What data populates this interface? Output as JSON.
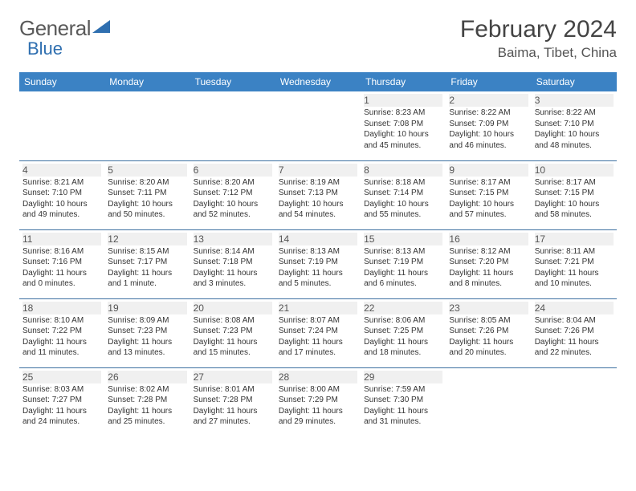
{
  "logo": {
    "text_a": "General",
    "text_b": "Blue",
    "color_a": "#5a5a5a",
    "color_b": "#2f6fb0"
  },
  "title": "February 2024",
  "location": "Baima, Tibet, China",
  "header_bg": "#3b82c4",
  "border_color": "#3b6fa0",
  "day_bg": "#f0f0f0",
  "weekdays": [
    "Sunday",
    "Monday",
    "Tuesday",
    "Wednesday",
    "Thursday",
    "Friday",
    "Saturday"
  ],
  "weeks": [
    [
      null,
      null,
      null,
      null,
      {
        "n": "1",
        "sr": "Sunrise: 8:23 AM",
        "ss": "Sunset: 7:08 PM",
        "dl": "Daylight: 10 hours and 45 minutes."
      },
      {
        "n": "2",
        "sr": "Sunrise: 8:22 AM",
        "ss": "Sunset: 7:09 PM",
        "dl": "Daylight: 10 hours and 46 minutes."
      },
      {
        "n": "3",
        "sr": "Sunrise: 8:22 AM",
        "ss": "Sunset: 7:10 PM",
        "dl": "Daylight: 10 hours and 48 minutes."
      }
    ],
    [
      {
        "n": "4",
        "sr": "Sunrise: 8:21 AM",
        "ss": "Sunset: 7:10 PM",
        "dl": "Daylight: 10 hours and 49 minutes."
      },
      {
        "n": "5",
        "sr": "Sunrise: 8:20 AM",
        "ss": "Sunset: 7:11 PM",
        "dl": "Daylight: 10 hours and 50 minutes."
      },
      {
        "n": "6",
        "sr": "Sunrise: 8:20 AM",
        "ss": "Sunset: 7:12 PM",
        "dl": "Daylight: 10 hours and 52 minutes."
      },
      {
        "n": "7",
        "sr": "Sunrise: 8:19 AM",
        "ss": "Sunset: 7:13 PM",
        "dl": "Daylight: 10 hours and 54 minutes."
      },
      {
        "n": "8",
        "sr": "Sunrise: 8:18 AM",
        "ss": "Sunset: 7:14 PM",
        "dl": "Daylight: 10 hours and 55 minutes."
      },
      {
        "n": "9",
        "sr": "Sunrise: 8:17 AM",
        "ss": "Sunset: 7:15 PM",
        "dl": "Daylight: 10 hours and 57 minutes."
      },
      {
        "n": "10",
        "sr": "Sunrise: 8:17 AM",
        "ss": "Sunset: 7:15 PM",
        "dl": "Daylight: 10 hours and 58 minutes."
      }
    ],
    [
      {
        "n": "11",
        "sr": "Sunrise: 8:16 AM",
        "ss": "Sunset: 7:16 PM",
        "dl": "Daylight: 11 hours and 0 minutes."
      },
      {
        "n": "12",
        "sr": "Sunrise: 8:15 AM",
        "ss": "Sunset: 7:17 PM",
        "dl": "Daylight: 11 hours and 1 minute."
      },
      {
        "n": "13",
        "sr": "Sunrise: 8:14 AM",
        "ss": "Sunset: 7:18 PM",
        "dl": "Daylight: 11 hours and 3 minutes."
      },
      {
        "n": "14",
        "sr": "Sunrise: 8:13 AM",
        "ss": "Sunset: 7:19 PM",
        "dl": "Daylight: 11 hours and 5 minutes."
      },
      {
        "n": "15",
        "sr": "Sunrise: 8:13 AM",
        "ss": "Sunset: 7:19 PM",
        "dl": "Daylight: 11 hours and 6 minutes."
      },
      {
        "n": "16",
        "sr": "Sunrise: 8:12 AM",
        "ss": "Sunset: 7:20 PM",
        "dl": "Daylight: 11 hours and 8 minutes."
      },
      {
        "n": "17",
        "sr": "Sunrise: 8:11 AM",
        "ss": "Sunset: 7:21 PM",
        "dl": "Daylight: 11 hours and 10 minutes."
      }
    ],
    [
      {
        "n": "18",
        "sr": "Sunrise: 8:10 AM",
        "ss": "Sunset: 7:22 PM",
        "dl": "Daylight: 11 hours and 11 minutes."
      },
      {
        "n": "19",
        "sr": "Sunrise: 8:09 AM",
        "ss": "Sunset: 7:23 PM",
        "dl": "Daylight: 11 hours and 13 minutes."
      },
      {
        "n": "20",
        "sr": "Sunrise: 8:08 AM",
        "ss": "Sunset: 7:23 PM",
        "dl": "Daylight: 11 hours and 15 minutes."
      },
      {
        "n": "21",
        "sr": "Sunrise: 8:07 AM",
        "ss": "Sunset: 7:24 PM",
        "dl": "Daylight: 11 hours and 17 minutes."
      },
      {
        "n": "22",
        "sr": "Sunrise: 8:06 AM",
        "ss": "Sunset: 7:25 PM",
        "dl": "Daylight: 11 hours and 18 minutes."
      },
      {
        "n": "23",
        "sr": "Sunrise: 8:05 AM",
        "ss": "Sunset: 7:26 PM",
        "dl": "Daylight: 11 hours and 20 minutes."
      },
      {
        "n": "24",
        "sr": "Sunrise: 8:04 AM",
        "ss": "Sunset: 7:26 PM",
        "dl": "Daylight: 11 hours and 22 minutes."
      }
    ],
    [
      {
        "n": "25",
        "sr": "Sunrise: 8:03 AM",
        "ss": "Sunset: 7:27 PM",
        "dl": "Daylight: 11 hours and 24 minutes."
      },
      {
        "n": "26",
        "sr": "Sunrise: 8:02 AM",
        "ss": "Sunset: 7:28 PM",
        "dl": "Daylight: 11 hours and 25 minutes."
      },
      {
        "n": "27",
        "sr": "Sunrise: 8:01 AM",
        "ss": "Sunset: 7:28 PM",
        "dl": "Daylight: 11 hours and 27 minutes."
      },
      {
        "n": "28",
        "sr": "Sunrise: 8:00 AM",
        "ss": "Sunset: 7:29 PM",
        "dl": "Daylight: 11 hours and 29 minutes."
      },
      {
        "n": "29",
        "sr": "Sunrise: 7:59 AM",
        "ss": "Sunset: 7:30 PM",
        "dl": "Daylight: 11 hours and 31 minutes."
      },
      null,
      null
    ]
  ]
}
